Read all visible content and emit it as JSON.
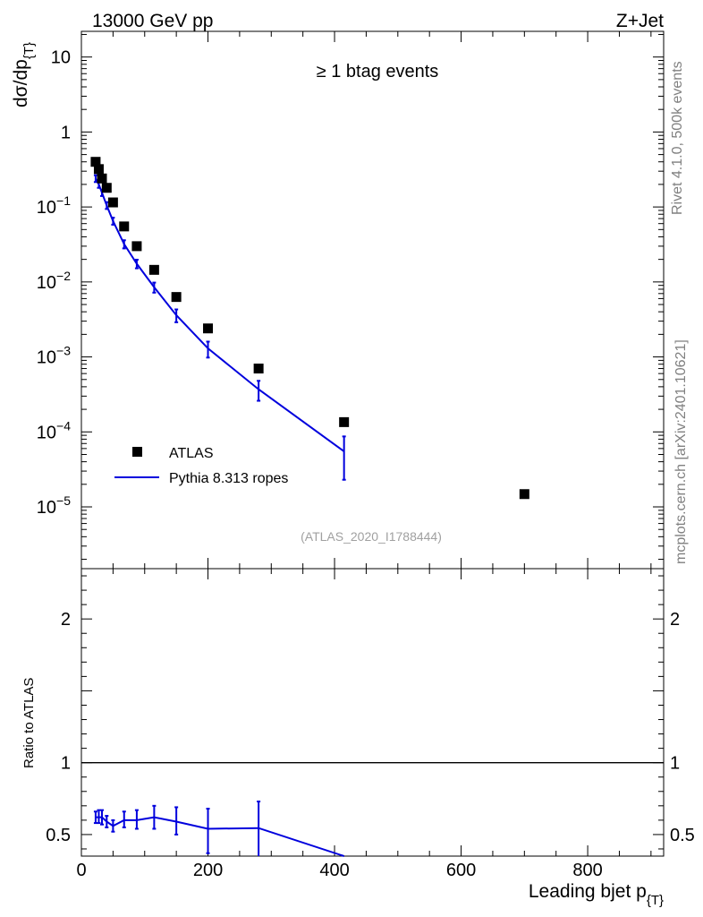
{
  "header": {
    "left": "13000 GeV pp",
    "right": "Z+Jet"
  },
  "side_labels": {
    "rivet": "Rivet 4.1.0,  500k events",
    "source": "mcplots.cern.ch [arXiv:2401.10621]"
  },
  "chart_data": [
    {
      "type": "scatter",
      "panel": "main",
      "annotation": "≥ 1 btag events",
      "watermark": "(ATLAS_2020_I1788444)",
      "ylabel_main": "dσ/dp",
      "ylabel_sub": "{T}",
      "xlim": [
        0,
        920
      ],
      "ylim": [
        1.5e-06,
        22
      ],
      "yscale": "log",
      "ytick_labels": [
        {
          "value": 10,
          "base": "10",
          "exp": ""
        },
        {
          "value": 1,
          "base": "1",
          "exp": ""
        },
        {
          "value": 0.1,
          "base": "10",
          "exp": "−1"
        },
        {
          "value": 0.01,
          "base": "10",
          "exp": "−2"
        },
        {
          "value": 0.001,
          "base": "10",
          "exp": "−3"
        },
        {
          "value": 0.0001,
          "base": "10",
          "exp": "−4"
        },
        {
          "value": 1e-05,
          "base": "10",
          "exp": "−5"
        }
      ],
      "legend": {
        "placement": "bottom-left",
        "entries": [
          {
            "label": "ATLAS",
            "marker": "square",
            "color": "#000000"
          },
          {
            "label": "Pythia 8.313 ropes",
            "marker": "line",
            "color": "#0000dd"
          }
        ]
      },
      "series": [
        {
          "name": "ATLAS",
          "color": "#000000",
          "x": [
            22.5,
            27.5,
            32.5,
            40,
            50,
            67.5,
            87.5,
            115,
            150,
            200,
            280,
            415,
            700
          ],
          "y": [
            0.4,
            0.32,
            0.24,
            0.18,
            0.115,
            0.055,
            0.03,
            0.0145,
            0.0063,
            0.0024,
            0.0007,
            0.000135,
            1.48e-05
          ]
        },
        {
          "name": "Pythia 8.313 ropes",
          "color": "#0000dd",
          "x": [
            22.5,
            27.5,
            32.5,
            40,
            50,
            67.5,
            87.5,
            115,
            150,
            200,
            280,
            415
          ],
          "y": [
            0.24,
            0.2,
            0.155,
            0.105,
            0.065,
            0.032,
            0.0175,
            0.0085,
            0.0036,
            0.0013,
            0.00037,
            5.5e-05
          ],
          "y_low": [
            0.215,
            0.18,
            0.14,
            0.094,
            0.058,
            0.028,
            0.0152,
            0.0072,
            0.0029,
            0.00098,
            0.00026,
            2.3e-05
          ],
          "y_high": [
            0.265,
            0.22,
            0.17,
            0.116,
            0.072,
            0.036,
            0.0198,
            0.0098,
            0.0043,
            0.0016,
            0.00048,
            8.7e-05
          ]
        }
      ]
    },
    {
      "type": "line",
      "panel": "ratio",
      "ylabel": "Ratio to ATLAS",
      "xlabel_main": "Leading bjet p",
      "xlabel_sub": "{T}",
      "xlim": [
        0,
        920
      ],
      "ylim": [
        0.35,
        2.35
      ],
      "x_ticks": [
        0,
        200,
        400,
        600,
        800
      ],
      "y_ticks": [
        0.5,
        1,
        2
      ],
      "y_tick_labels": [
        "0.5",
        "1",
        "2"
      ],
      "reference_line": 1,
      "series": [
        {
          "name": "Pythia 8.313 ropes",
          "color": "#0000dd",
          "x": [
            22.5,
            27.5,
            32.5,
            40,
            50,
            67.5,
            87.5,
            115,
            150,
            200,
            280,
            415
          ],
          "y": [
            0.62,
            0.62,
            0.62,
            0.59,
            0.56,
            0.6,
            0.6,
            0.62,
            0.59,
            0.54,
            0.545,
            0.35
          ],
          "y_low": [
            0.58,
            0.58,
            0.57,
            0.55,
            0.52,
            0.55,
            0.54,
            0.54,
            0.5,
            0.37,
            0.35,
            0.35
          ],
          "y_high": [
            0.66,
            0.67,
            0.67,
            0.63,
            0.6,
            0.66,
            0.67,
            0.7,
            0.69,
            0.68,
            0.73,
            0.35
          ]
        }
      ]
    }
  ]
}
